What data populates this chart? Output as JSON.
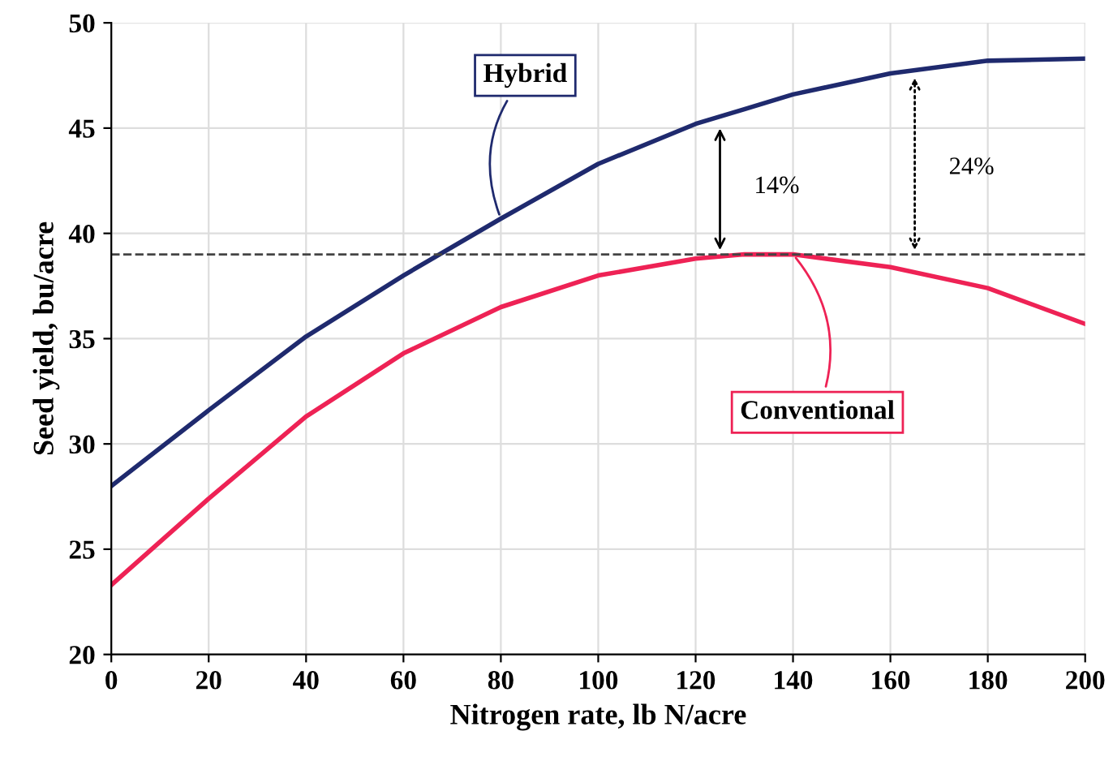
{
  "chart_data": {
    "type": "line",
    "xlabel": "Nitrogen rate, lb N/acre",
    "ylabel": "Seed yield, bu/acre",
    "x": [
      0,
      20,
      40,
      60,
      80,
      100,
      120,
      130,
      140,
      160,
      180,
      200
    ],
    "series": [
      {
        "name": "Hybrid",
        "color": "#1f2a6e",
        "values": [
          28.0,
          31.6,
          35.1,
          38.0,
          40.7,
          43.3,
          45.2,
          45.9,
          46.6,
          47.6,
          48.2,
          48.3
        ]
      },
      {
        "name": "Conventional",
        "color": "#ee2255",
        "values": [
          23.3,
          27.4,
          31.3,
          34.3,
          36.5,
          38.0,
          38.8,
          39.0,
          39.0,
          38.4,
          37.4,
          35.7
        ]
      }
    ],
    "xlim": [
      0,
      200
    ],
    "ylim": [
      20,
      50
    ],
    "xticks": [
      0,
      20,
      40,
      60,
      80,
      100,
      120,
      140,
      160,
      180,
      200
    ],
    "yticks": [
      20,
      25,
      30,
      35,
      40,
      45,
      50
    ],
    "ref_lines": [
      {
        "axis": "y",
        "value": 39,
        "line_style": "dashed",
        "color": "#444444"
      }
    ],
    "annotations": [
      "14%",
      "24%"
    ],
    "grid": true,
    "legend": false,
    "marker": "none",
    "line_style": "solid"
  }
}
